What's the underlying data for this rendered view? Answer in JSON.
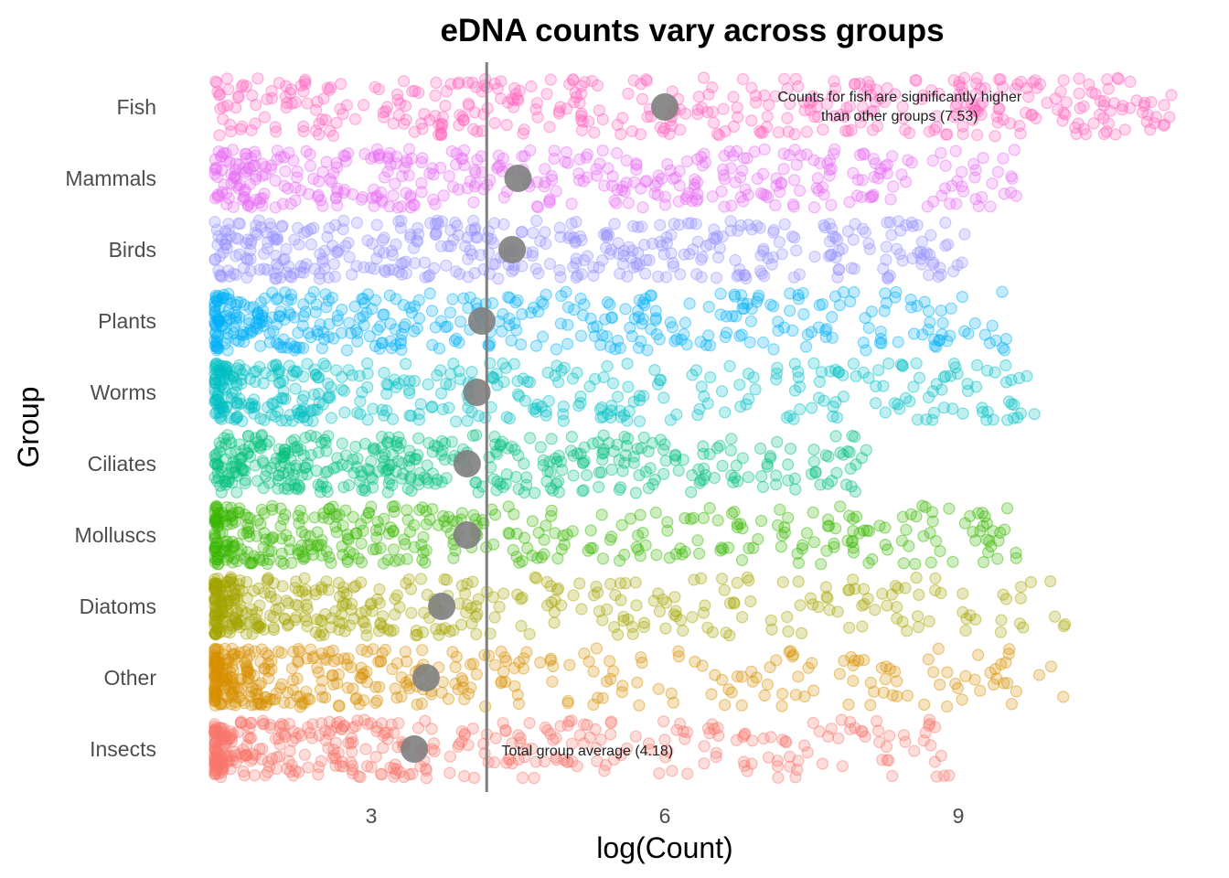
{
  "chart_data": {
    "type": "scatter",
    "subtype": "jittered strip plot with group means",
    "title": "eDNA counts vary across groups",
    "xlabel": "log(Count)",
    "ylabel": "Group",
    "xlim": [
      0.9,
      11.4
    ],
    "xticks": [
      3,
      6,
      9
    ],
    "grid": false,
    "legend": "none",
    "groups": [
      "Fish",
      "Mammals",
      "Birds",
      "Plants",
      "Worms",
      "Ciliates",
      "Molluscs",
      "Diatoms",
      "Other",
      "Insects"
    ],
    "colors": [
      "#FF62BC",
      "#E76BF3",
      "#9590FF",
      "#00B0F6",
      "#00BFC4",
      "#00BF7D",
      "#39B600",
      "#A3A500",
      "#D89000",
      "#F8766D"
    ],
    "group_means": [
      6.0,
      4.5,
      4.44,
      4.13,
      4.08,
      3.98,
      3.98,
      3.72,
      3.56,
      3.44
    ],
    "point_ranges": [
      [
        1.4,
        11.2
      ],
      [
        1.4,
        9.6
      ],
      [
        1.4,
        9.1
      ],
      [
        1.4,
        9.5
      ],
      [
        1.4,
        9.8
      ],
      [
        1.4,
        8.1
      ],
      [
        1.4,
        9.6
      ],
      [
        1.4,
        10.1
      ],
      [
        1.4,
        10.1
      ],
      [
        1.4,
        9.0
      ]
    ],
    "points_per_group": 420,
    "overall_mean": 4.18,
    "mean_color": "#808080",
    "annotations": [
      {
        "text_line1": "Counts for fish are significantly higher",
        "text_line2": "than other groups (7.53)",
        "group": "Fish",
        "x": 8.4
      },
      {
        "text": "Total group average (4.18)",
        "group": "Insects",
        "x": 4.35
      }
    ]
  }
}
